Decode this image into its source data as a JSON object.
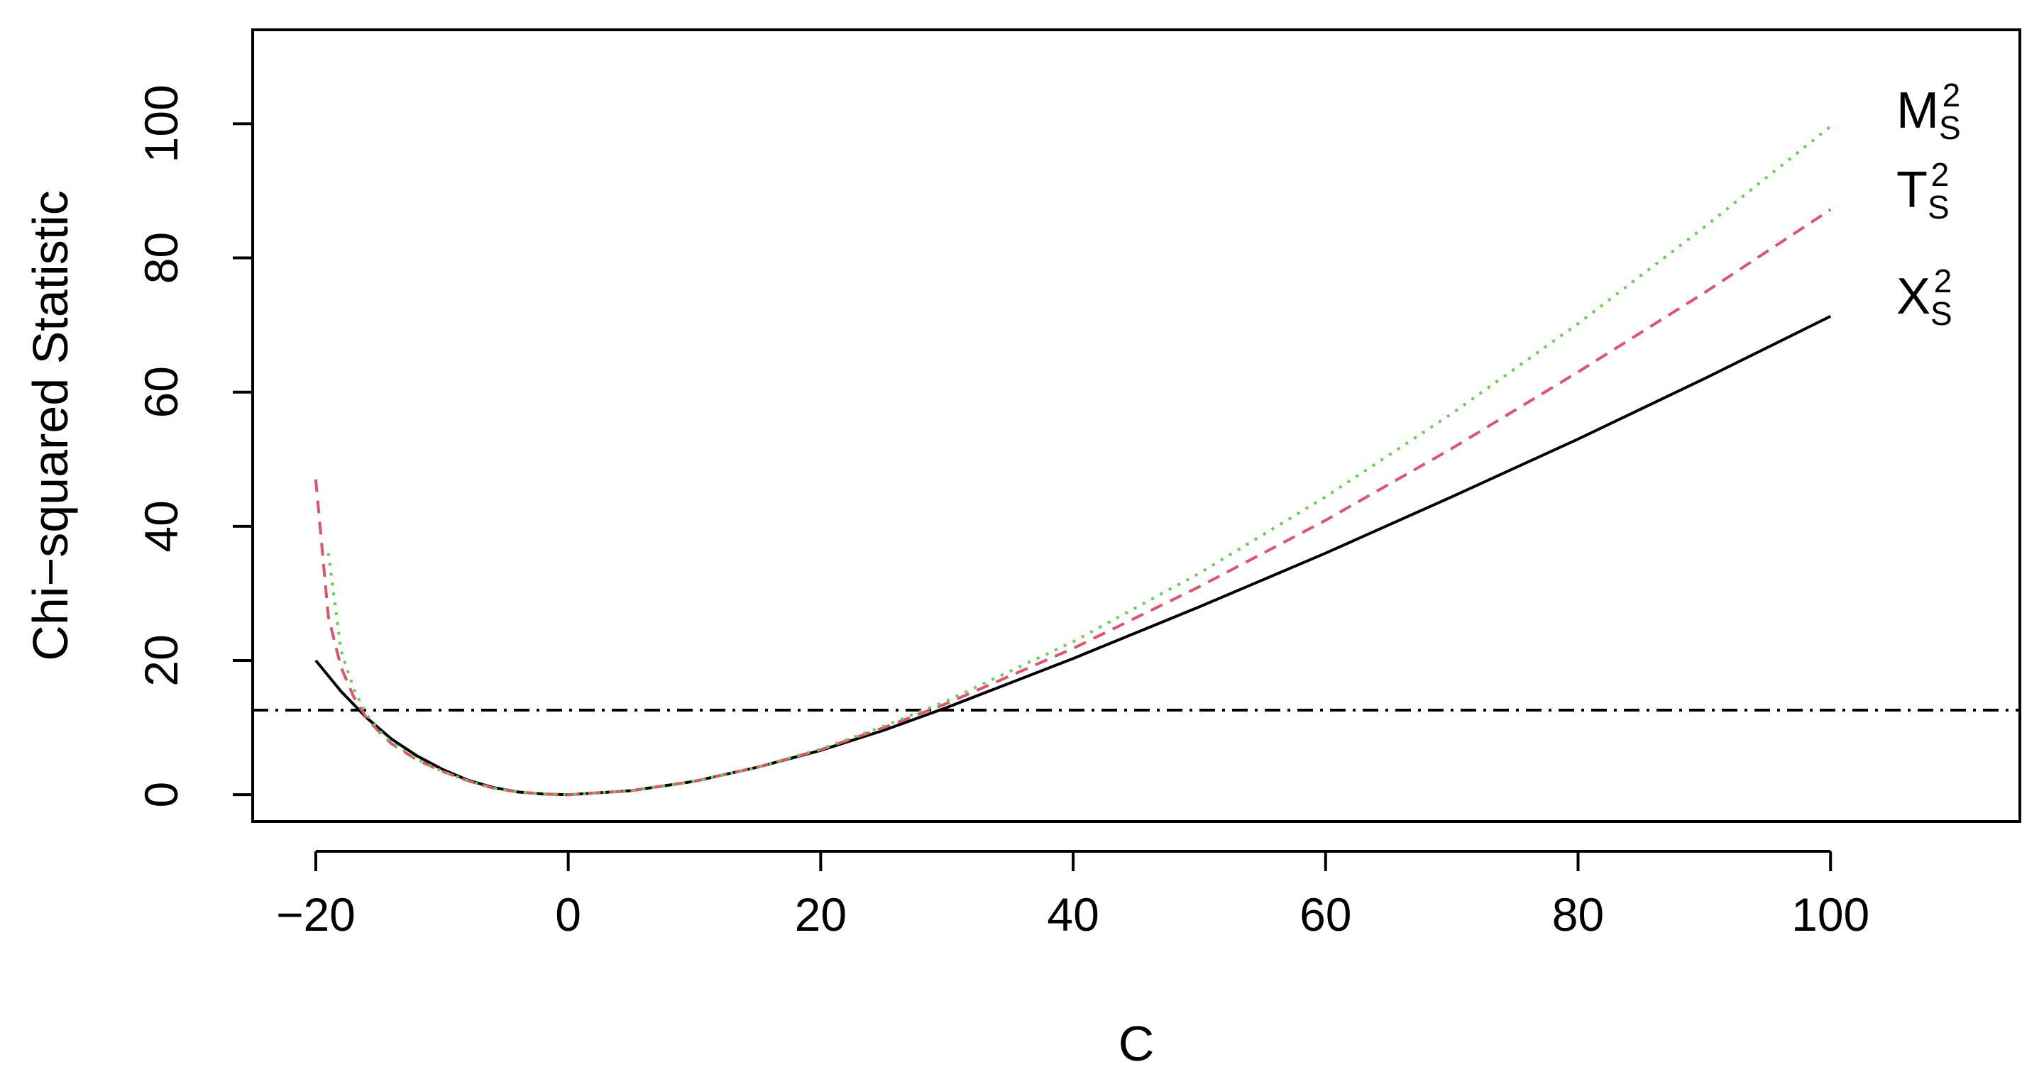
{
  "chart_data": {
    "type": "line",
    "title": "",
    "xlabel": "C",
    "ylabel": "Chi−squared Statistic",
    "xlim": [
      -25,
      115
    ],
    "ylim": [
      -4,
      114
    ],
    "xticks": [
      -20,
      0,
      20,
      40,
      60,
      80,
      100
    ],
    "xtick_labels": [
      "−20",
      "0",
      "20",
      "40",
      "60",
      "80",
      "100"
    ],
    "yticks": [
      0,
      20,
      40,
      60,
      80,
      100
    ],
    "ytick_labels": [
      "0",
      "20",
      "40",
      "60",
      "80",
      "100"
    ],
    "grid": false,
    "reference_line": {
      "y": 12.6,
      "style": "dot-dash",
      "color": "#000000"
    },
    "series": [
      {
        "name": "X",
        "sub": "S",
        "sup": "2",
        "style": "solid",
        "color": "#000000",
        "x": [
          -20,
          -18,
          -16,
          -14,
          -12,
          -10,
          -8,
          -6,
          -4,
          -2,
          0,
          5,
          10,
          15,
          20,
          25,
          30,
          40,
          50,
          60,
          70,
          80,
          90,
          100
        ],
        "y": [
          20,
          15.4,
          11.5,
          8.3,
          5.8,
          3.8,
          2.2,
          1.1,
          0.4,
          0.1,
          0,
          0.6,
          2.0,
          4.1,
          6.6,
          9.6,
          13.0,
          20.3,
          28.0,
          36.0,
          44.4,
          53.0,
          62.0,
          71.3
        ]
      },
      {
        "name": "T",
        "sub": "S",
        "sup": "2",
        "style": "dashed",
        "color": "#df536b",
        "x": [
          -20,
          -19,
          -18,
          -17,
          -16,
          -15,
          -14,
          -12,
          -10,
          -8,
          -6,
          -4,
          -2,
          0,
          5,
          10,
          15,
          20,
          25,
          30,
          40,
          50,
          60,
          70,
          80,
          90,
          100
        ],
        "y": [
          47,
          26.5,
          19.0,
          14.6,
          11.5,
          9.4,
          7.6,
          5.2,
          3.5,
          2.1,
          1.0,
          0.4,
          0.1,
          0,
          0.6,
          2.0,
          4.1,
          6.7,
          10.0,
          13.6,
          21.8,
          31.0,
          40.9,
          51.6,
          63.0,
          74.8,
          87.2
        ]
      },
      {
        "name": "M",
        "sub": "S",
        "sup": "2",
        "style": "dotted",
        "color": "#61d04f",
        "x": [
          -19,
          -18,
          -17,
          -16,
          -15,
          -14,
          -12,
          -10,
          -8,
          -6,
          -4,
          -2,
          0,
          5,
          10,
          15,
          20,
          25,
          30,
          40,
          50,
          60,
          70,
          80,
          90,
          100
        ],
        "y": [
          36,
          21.5,
          15.8,
          12.0,
          9.6,
          7.8,
          5.3,
          3.5,
          2.1,
          1.0,
          0.4,
          0.1,
          0,
          0.6,
          2.0,
          4.1,
          6.8,
          10.2,
          14.0,
          22.8,
          33.0,
          44.4,
          56.8,
          70.2,
          84.6,
          99.6
        ]
      }
    ]
  }
}
